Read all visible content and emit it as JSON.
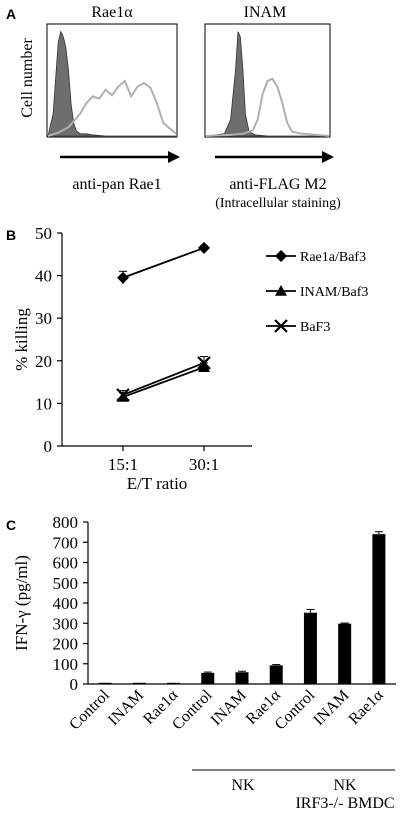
{
  "panels": {
    "A": {
      "letter": "A",
      "ylabel": "Cell number",
      "left": {
        "title": "Rae1α",
        "axis_label": "anti-pan Rae1",
        "axis_sublabel": ""
      },
      "right": {
        "title": "INAM",
        "axis_label": "anti-FLAG M2",
        "axis_sublabel": "(Intracellular staining)"
      }
    },
    "B": {
      "letter": "B"
    },
    "C": {
      "letter": "C",
      "group_labels": [
        {
          "line1": "NK",
          "line2": ""
        },
        {
          "line1": "NK",
          "line2": "IRF3-/- BMDC"
        }
      ]
    }
  },
  "colors": {
    "histogram_filled": "#6e6e6e",
    "histogram_line": "#b0b0b0",
    "bars": "#000000"
  },
  "chart_data": [
    {
      "type": "histogram",
      "panel": "A-left",
      "title": "Rae1α",
      "xlabel": "anti-pan Rae1",
      "ylabel": "Cell number",
      "series": [
        {
          "name": "",
          "style": "filled",
          "x": [
            0,
            0.04,
            0.08,
            0.1,
            0.12,
            0.14,
            0.16,
            0.18,
            0.2,
            0.22,
            0.25,
            0.3,
            0.35,
            0.45,
            0.6,
            1.0
          ],
          "values": [
            0,
            0.2,
            0.85,
            0.95,
            0.9,
            0.8,
            0.6,
            0.3,
            0.12,
            0.05,
            0.02,
            0.02,
            0.01,
            0,
            0,
            0
          ]
        },
        {
          "name": "",
          "style": "outline",
          "x": [
            0,
            0.08,
            0.16,
            0.25,
            0.3,
            0.35,
            0.4,
            0.45,
            0.5,
            0.55,
            0.6,
            0.65,
            0.7,
            0.75,
            0.8,
            0.85,
            0.9,
            1.0
          ],
          "values": [
            0,
            0.03,
            0.08,
            0.2,
            0.3,
            0.36,
            0.34,
            0.42,
            0.37,
            0.45,
            0.5,
            0.36,
            0.45,
            0.48,
            0.44,
            0.3,
            0.12,
            0.02
          ]
        }
      ]
    },
    {
      "type": "histogram",
      "panel": "A-right",
      "title": "INAM",
      "xlabel": "anti-FLAG M2",
      "ylabel": "",
      "series": [
        {
          "name": "",
          "style": "filled",
          "x": [
            0,
            0.15,
            0.2,
            0.24,
            0.26,
            0.28,
            0.3,
            0.32,
            0.35,
            0.4,
            0.5,
            1.0
          ],
          "values": [
            0,
            0.02,
            0.15,
            0.6,
            0.95,
            0.9,
            0.6,
            0.2,
            0.04,
            0.01,
            0,
            0
          ]
        },
        {
          "name": "",
          "style": "outline",
          "x": [
            0,
            0.2,
            0.3,
            0.38,
            0.42,
            0.46,
            0.5,
            0.54,
            0.58,
            0.62,
            0.66,
            0.7,
            0.78,
            0.9,
            1.0
          ],
          "values": [
            0,
            0.01,
            0.02,
            0.05,
            0.15,
            0.38,
            0.5,
            0.52,
            0.45,
            0.3,
            0.12,
            0.04,
            0.02,
            0.01,
            0
          ]
        }
      ]
    },
    {
      "type": "line",
      "panel": "B",
      "title": "",
      "xlabel": "E/T ratio",
      "ylabel": "% killing",
      "categories": [
        "15:1",
        "30:1"
      ],
      "ylim": [
        0,
        50
      ],
      "yticks": [
        0,
        10,
        20,
        30,
        40,
        50
      ],
      "legend_position": "right",
      "series": [
        {
          "name": "Rae1a/Baf3",
          "marker": "diamond",
          "values": [
            39.5,
            46.5
          ],
          "errors": [
            1.5,
            0.5
          ]
        },
        {
          "name": "INAM/Baf3",
          "marker": "triangle",
          "values": [
            11.5,
            18.5
          ],
          "errors": [
            1.0,
            1.0
          ]
        },
        {
          "name": "BaF3",
          "marker": "x",
          "values": [
            12.0,
            19.5
          ],
          "errors": [
            1.0,
            1.5
          ]
        }
      ]
    },
    {
      "type": "bar",
      "panel": "C",
      "title": "",
      "xlabel": "",
      "ylabel": "IFN-γ (pg/ml)",
      "categories": [
        "Control",
        "INAM",
        "Rae1α",
        "Control",
        "INAM",
        "Rae1α",
        "Control",
        "INAM",
        "Rae1α"
      ],
      "values": [
        2,
        2,
        2,
        55,
        58,
        92,
        352,
        298,
        740
      ],
      "errors": [
        0,
        0,
        0,
        4,
        5,
        4,
        16,
        3,
        12
      ],
      "ylim": [
        0,
        800
      ],
      "yticks": [
        0,
        100,
        200,
        300,
        400,
        500,
        600,
        700,
        800
      ],
      "groups": [
        {
          "label": "NK",
          "from": 3,
          "to": 5
        },
        {
          "label": "NK IRF3-/- BMDC",
          "from": 6,
          "to": 8
        }
      ]
    }
  ]
}
